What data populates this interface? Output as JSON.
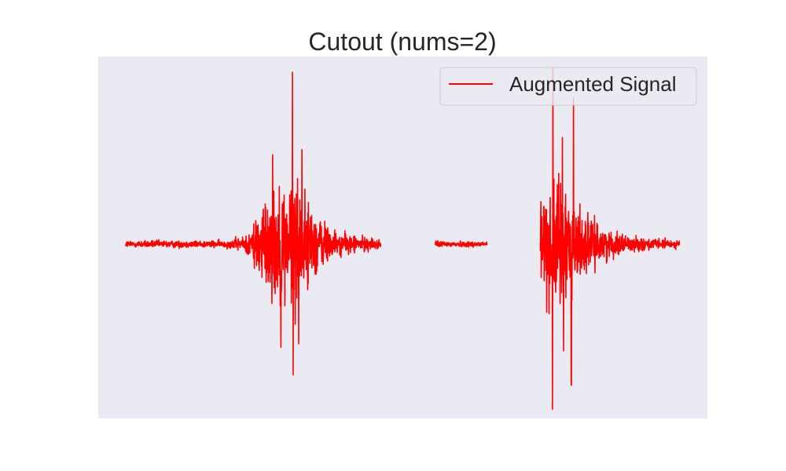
{
  "chart_data": {
    "type": "line",
    "title": "Cutout (nums=2)",
    "xlabel": "",
    "ylabel": "",
    "axes_visible": false,
    "grid": false,
    "legend_placement": "top-right",
    "series": [
      {
        "name": "Augmented Signal",
        "color": "#ff0000",
        "segments": [
          {
            "x_range": [
              0,
              0.46
            ],
            "envelope": [
              {
                "x": 0.0,
                "amp": 0.06
              },
              {
                "x": 0.18,
                "amp": 0.06
              },
              {
                "x": 0.22,
                "amp": 0.15
              },
              {
                "x": 0.238,
                "amp": 0.65
              },
              {
                "x": 0.3,
                "amp": 1.2
              },
              {
                "x": 0.33,
                "amp": 0.7
              },
              {
                "x": 0.38,
                "amp": 0.2
              },
              {
                "x": 0.46,
                "amp": 0.08
              }
            ],
            "spikes": [
              {
                "x": 0.301,
                "y": 1.0
              },
              {
                "x": 0.302,
                "y": -0.76
              },
              {
                "x": 0.28,
                "y": -0.6
              },
              {
                "x": 0.318,
                "y": 0.55
              },
              {
                "x": 0.312,
                "y": -0.58
              },
              {
                "x": 0.265,
                "y": 0.52
              }
            ]
          },
          {
            "x_range": [
              0.558,
              0.652
            ],
            "envelope": [
              {
                "x": 0.558,
                "amp": 0.05
              },
              {
                "x": 0.652,
                "amp": 0.05
              }
            ],
            "spikes": []
          },
          {
            "x_range": [
              0.748,
              1.0
            ],
            "envelope": [
              {
                "x": 0.748,
                "amp": 0.8
              },
              {
                "x": 0.775,
                "amp": 1.1
              },
              {
                "x": 0.81,
                "amp": 0.8
              },
              {
                "x": 0.84,
                "amp": 0.4
              },
              {
                "x": 0.88,
                "amp": 0.2
              },
              {
                "x": 0.92,
                "amp": 0.12
              },
              {
                "x": 1.0,
                "amp": 0.06
              }
            ],
            "spikes": [
              {
                "x": 0.771,
                "y": 1.02
              },
              {
                "x": 0.77,
                "y": -0.96
              },
              {
                "x": 0.804,
                "y": -0.82
              },
              {
                "x": 0.808,
                "y": 0.85
              },
              {
                "x": 0.79,
                "y": -0.62
              },
              {
                "x": 0.788,
                "y": 0.62
              }
            ]
          }
        ]
      }
    ],
    "colors": {
      "axes_background": "#eaeaf2",
      "line": "#ff0000",
      "legend_background": "#eaeaf2",
      "legend_border": "#cccccc",
      "text": "#262626"
    }
  }
}
